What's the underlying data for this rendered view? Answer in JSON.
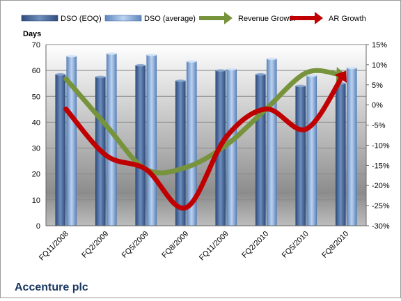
{
  "chart_data": {
    "type": "bar",
    "title": "Accenture plc",
    "ylabel": "Days",
    "ylim": [
      0,
      70
    ],
    "y2lim": [
      -30,
      15
    ],
    "y_ticks": [
      "0",
      "10",
      "20",
      "30",
      "40",
      "50",
      "60",
      "70"
    ],
    "y2_ticks": [
      "-30%",
      "-25%",
      "-20%",
      "-15%",
      "-10%",
      "-5%",
      "0%",
      "5%",
      "10%",
      "15%"
    ],
    "legend_position": "top",
    "categories": [
      "FQ11/2008",
      "FQ2/2009",
      "FQ5/2009",
      "FQ8/2009",
      "FQ11/2009",
      "FQ2/2010",
      "FQ5/2010",
      "FQ8/2010"
    ],
    "series": [
      {
        "name": "DSO (EOQ)",
        "kind": "bar",
        "axis": "left",
        "color": "#4f6f9f",
        "values": [
          58.5,
          57.5,
          62,
          56,
          60,
          58.5,
          54,
          55
        ]
      },
      {
        "name": "DSO (average)",
        "kind": "bar",
        "axis": "left",
        "color": "#8eb4e3",
        "values": [
          65.5,
          66.5,
          66,
          63.5,
          60.5,
          64.5,
          58,
          61
        ]
      },
      {
        "name": "Revenue Growth",
        "kind": "line",
        "axis": "right",
        "unit": "%",
        "color": "#77933c",
        "values": [
          6.5,
          -5,
          -16,
          -15.5,
          -10,
          -1,
          8,
          7.5
        ]
      },
      {
        "name": "AR Growth",
        "kind": "line",
        "axis": "right",
        "unit": "%",
        "color": "#c00000",
        "values": [
          -1,
          -12.5,
          -16,
          -25.5,
          -8,
          -1,
          -6,
          8.5
        ]
      }
    ]
  }
}
